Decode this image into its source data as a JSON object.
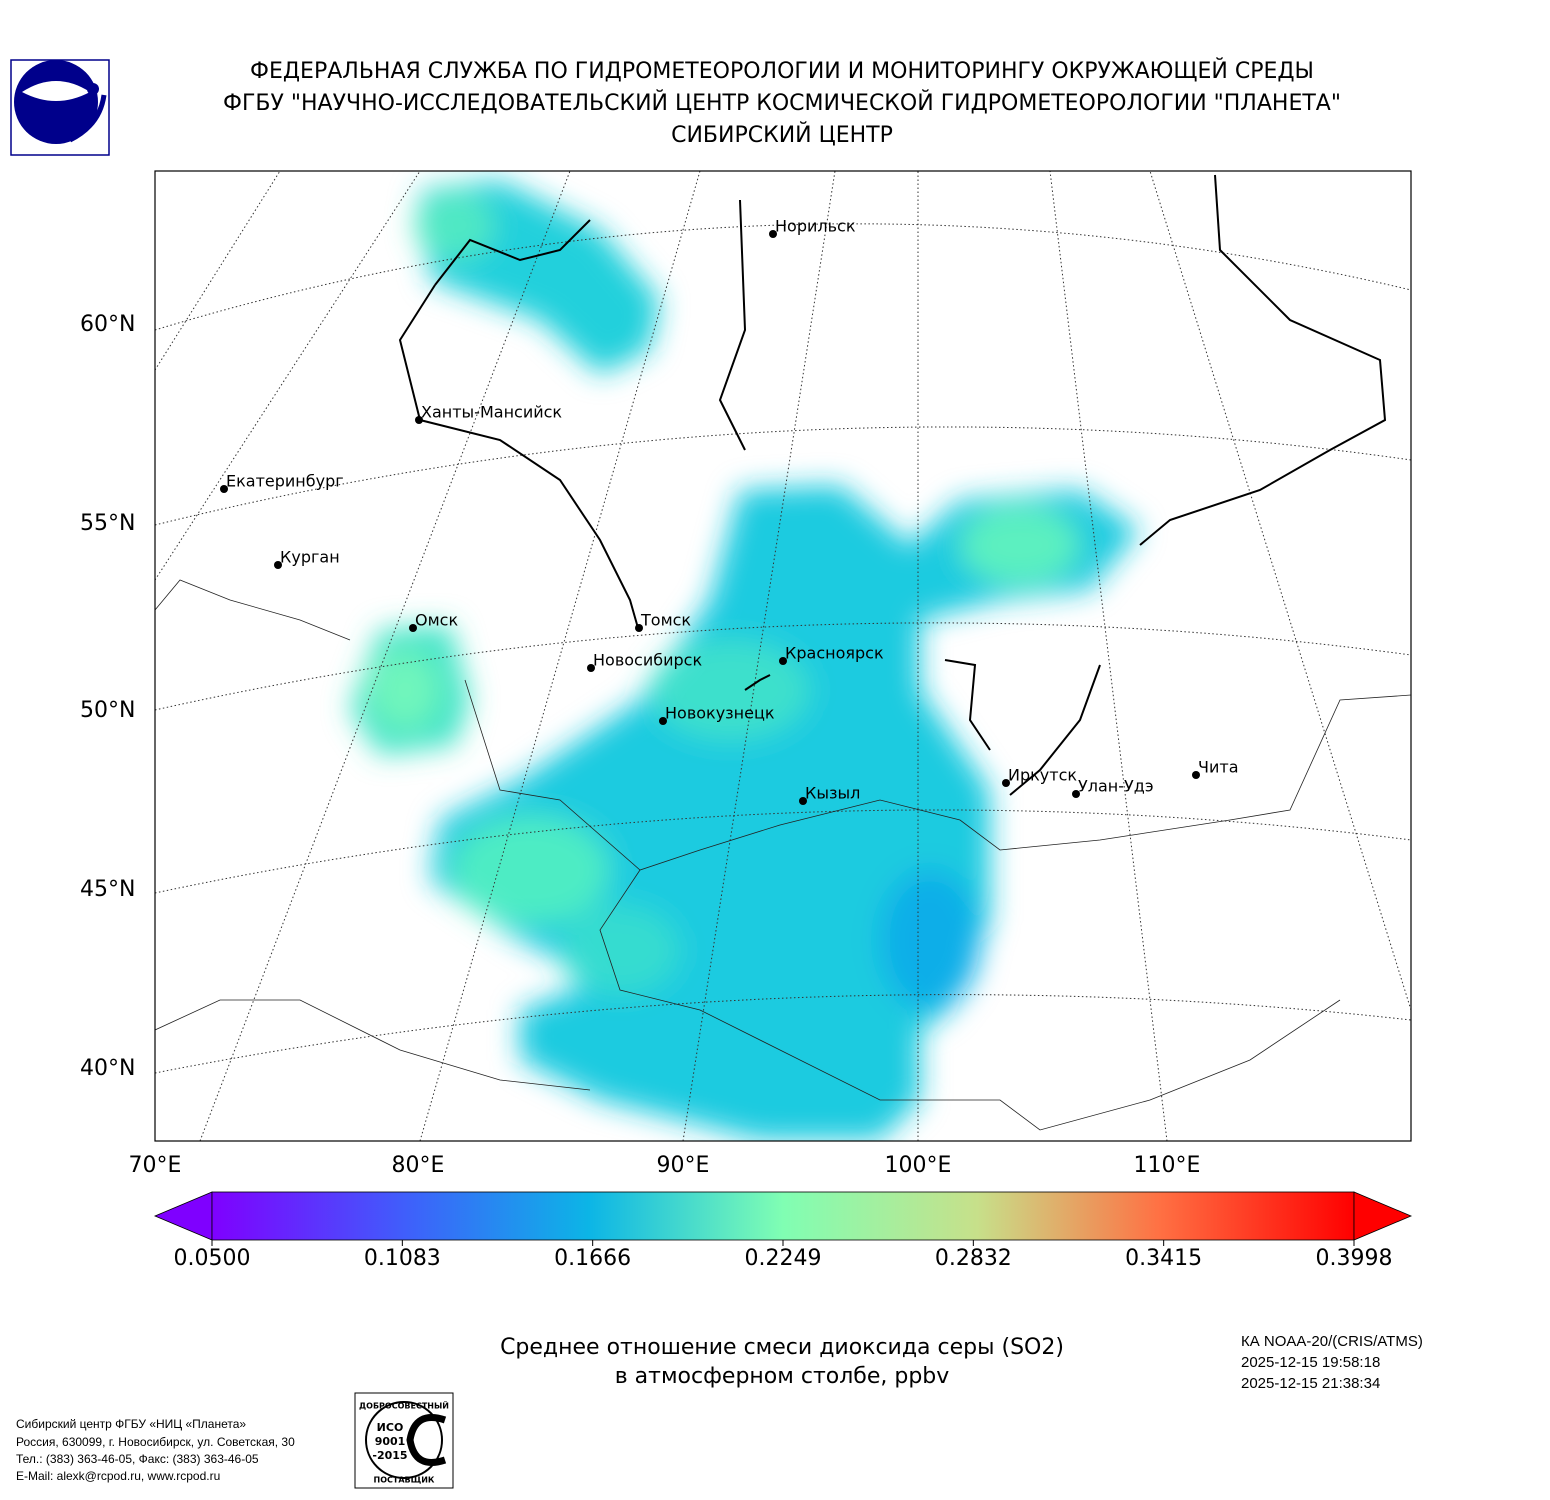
{
  "header": {
    "lines": [
      "ФЕДЕРАЛЬНАЯ СЛУЖБА ПО ГИДРОМЕТЕОРОЛОГИИ И МОНИТОРИНГУ ОКРУЖАЮЩЕЙ СРЕДЫ",
      "ФГБУ \"НАУЧНО-ИССЛЕДОВАТЕЛЬСКИЙ ЦЕНТР КОСМИЧЕСКОЙ ГИДРОМЕТЕОРОЛОГИИ \"ПЛАНЕТА\"",
      "СИБИРСКИЙ ЦЕНТР"
    ]
  },
  "map": {
    "cities": [
      "Норильск",
      "Ханты-Мансийск",
      "Екатеринбург",
      "Курган",
      "Омск",
      "Томск",
      "Новосибирск",
      "Красноярск",
      "Новокузнецк",
      "Кызыл",
      "Иркутск",
      "Улан-Удэ",
      "Чита"
    ],
    "lat_labels": [
      "60°N",
      "55°N",
      "50°N",
      "45°N",
      "40°N"
    ],
    "lon_labels": [
      "70°E",
      "80°E",
      "90°E",
      "100°E",
      "110°E"
    ]
  },
  "colorbar": {
    "ticks": [
      {
        "value": 0.05,
        "label": "0.0500"
      },
      {
        "value": 0.1083,
        "label": "0.1083"
      },
      {
        "value": 0.1666,
        "label": "0.1666"
      },
      {
        "value": 0.2249,
        "label": "0.2249"
      },
      {
        "value": 0.2832,
        "label": "0.2832"
      },
      {
        "value": 0.3415,
        "label": "0.3415"
      },
      {
        "value": 0.3998,
        "label": "0.3998"
      }
    ]
  },
  "caption": [
    "Среднее отношение смеси диоксида серы (SO2)",
    "в атмосферном столбе, ppbv"
  ],
  "satellite": [
    "КА NOAA-20/(CRIS/ATMS)",
    "2025-12-15 19:58:18",
    "2025-12-15 21:38:34"
  ],
  "footer": [
    "Сибирский центр ФГБУ «НИЦ «Планета»",
    "Россия, 630099, г. Новосибирск, ул. Советская, 30",
    "Тел.: (383) 363-46-05, Факс: (383) 363-46-05",
    "E-Mail: alexk@rcpod.ru, www.rcpod.ru"
  ],
  "certificate": [
    "ДОБРОСОВЕСТНЫЙ",
    "ИСО",
    "9001",
    "-2015",
    "ПОСТАВЩИК"
  ]
}
